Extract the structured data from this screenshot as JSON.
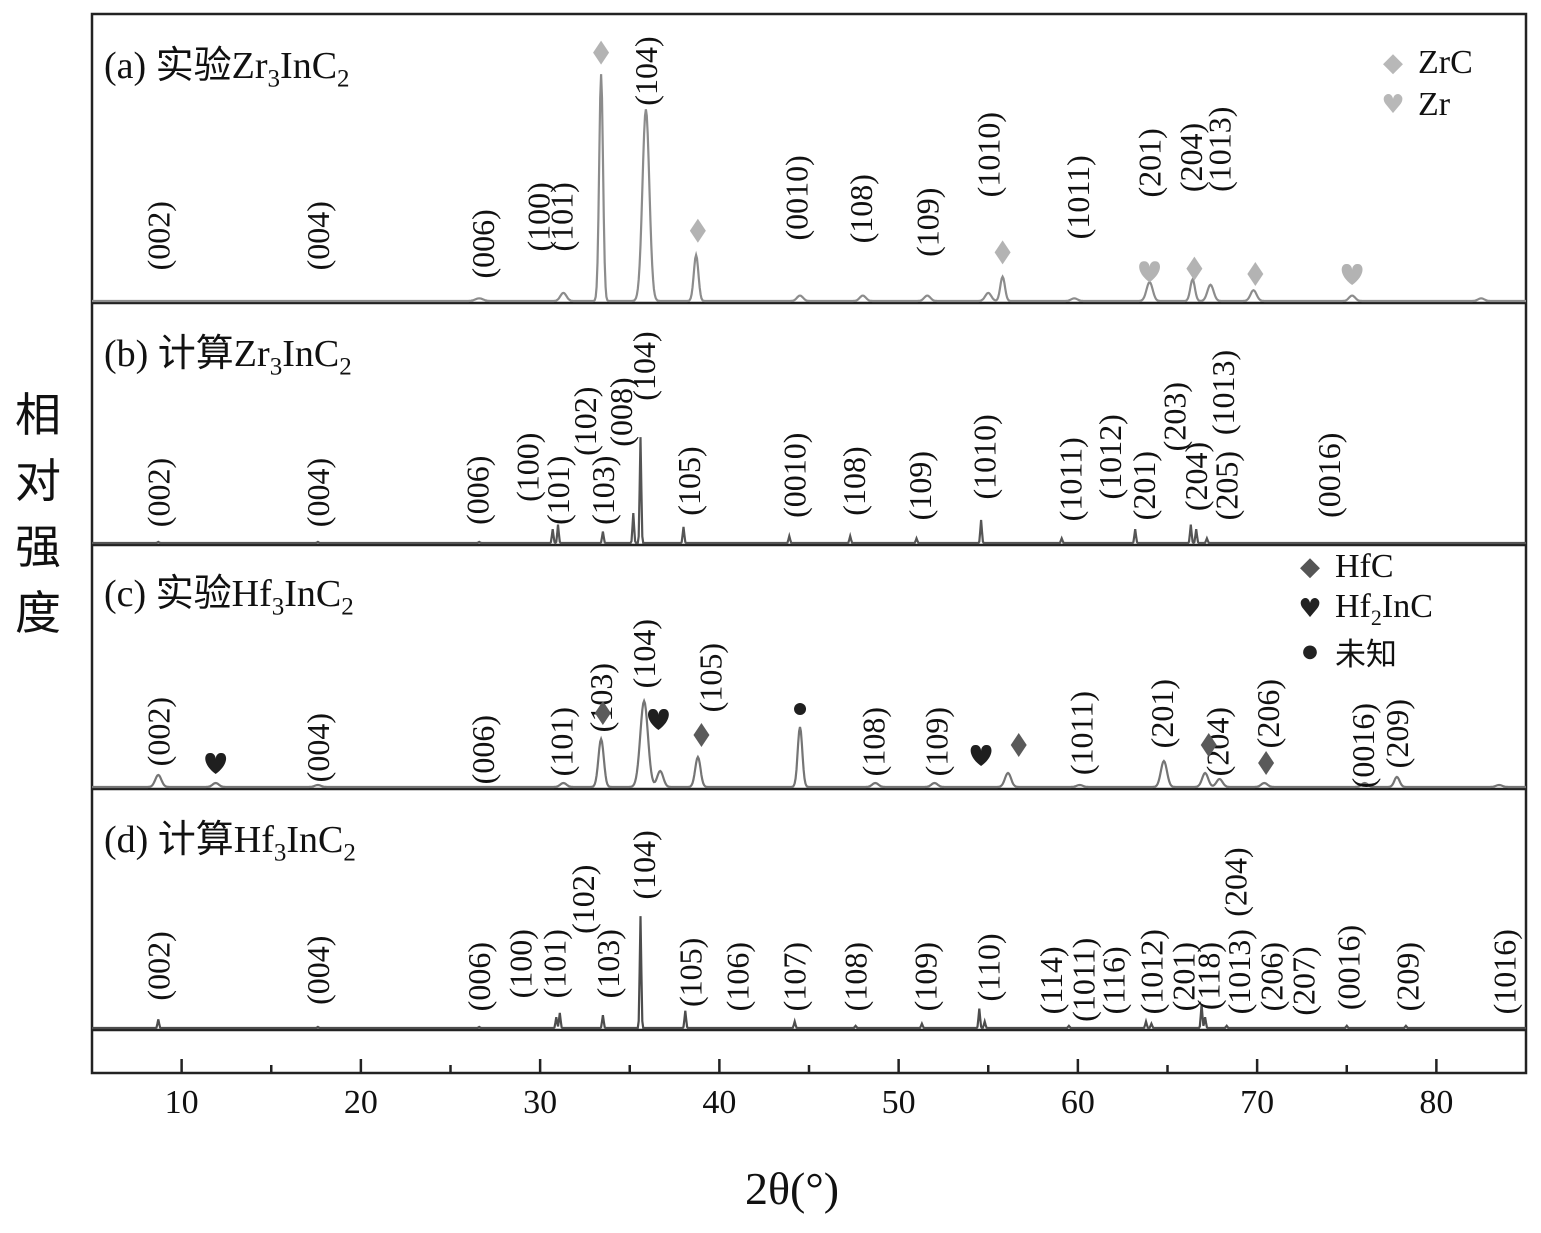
{
  "chart_data": {
    "type": "line",
    "xlabel": "2θ(°)",
    "ylabel": "相对强度",
    "xlim": [
      5,
      85
    ],
    "xticks": [
      10,
      20,
      30,
      40,
      50,
      60,
      70,
      80
    ],
    "grid": false,
    "panels": [
      {
        "id": "a",
        "title": "(a) 实验Zr3InC2",
        "title_parts": [
          "(a) 实验Zr",
          "3",
          "InC",
          "2"
        ],
        "color": "#8c8c8c",
        "peaks": [
          [
            26.6,
            0.01,
            0.5
          ],
          [
            31.3,
            0.03,
            0.4
          ],
          [
            33.4,
            0.84,
            0.25
          ],
          [
            35.9,
            0.71,
            0.45
          ],
          [
            38.7,
            0.17,
            0.3
          ],
          [
            44.5,
            0.02,
            0.4
          ],
          [
            48.0,
            0.02,
            0.4
          ],
          [
            51.6,
            0.02,
            0.4
          ],
          [
            55.0,
            0.03,
            0.4
          ],
          [
            55.8,
            0.09,
            0.3
          ],
          [
            59.8,
            0.01,
            0.4
          ],
          [
            64.0,
            0.07,
            0.4
          ],
          [
            66.4,
            0.08,
            0.3
          ],
          [
            67.4,
            0.06,
            0.4
          ],
          [
            69.8,
            0.04,
            0.4
          ],
          [
            75.3,
            0.02,
            0.4
          ],
          [
            82.5,
            0.01,
            0.4
          ]
        ],
        "labels": [
          {
            "text": "(002)",
            "x": 8.7,
            "top": 0.37
          },
          {
            "text": "(004)",
            "x": 17.6,
            "top": 0.37
          },
          {
            "text": "(006)",
            "x": 26.8,
            "top": 0.34
          },
          {
            "text": "(100)",
            "x": 29.9,
            "top": 0.44
          },
          {
            "text": "(101)",
            "x": 31.2,
            "top": 0.44
          },
          {
            "text": "(104)",
            "x": 35.9,
            "top": 0.98
          },
          {
            "text": "(0010)",
            "x": 44.3,
            "top": 0.54
          },
          {
            "text": "(108)",
            "x": 47.9,
            "top": 0.47
          },
          {
            "text": "(109)",
            "x": 51.6,
            "top": 0.42
          },
          {
            "text": "(1010)",
            "x": 55.0,
            "top": 0.7
          },
          {
            "text": "(1011)",
            "x": 60.0,
            "top": 0.54
          },
          {
            "text": "(201)",
            "x": 64.0,
            "top": 0.64
          },
          {
            "text": "(204)",
            "x": 66.3,
            "top": 0.66
          },
          {
            "text": "(1013)",
            "x": 67.9,
            "top": 0.72
          }
        ],
        "markers": [
          {
            "sym": "diamond",
            "x": 33.4,
            "y": 0.92
          },
          {
            "sym": "diamond",
            "x": 38.8,
            "y": 0.26
          },
          {
            "sym": "diamond",
            "x": 55.8,
            "y": 0.18
          },
          {
            "sym": "heart",
            "x": 64.0,
            "y": 0.11
          },
          {
            "sym": "diamond",
            "x": 66.5,
            "y": 0.12
          },
          {
            "sym": "diamond",
            "x": 69.9,
            "y": 0.1
          },
          {
            "sym": "heart",
            "x": 75.3,
            "y": 0.1
          }
        ],
        "legend": [
          {
            "sym": "diamond",
            "label": "ZrC"
          },
          {
            "sym": "heart",
            "label": "Zr"
          }
        ]
      },
      {
        "id": "b",
        "title": "(b) 计算Zr3InC2",
        "title_parts": [
          "(b) 计算Zr",
          "3",
          "InC",
          "2"
        ],
        "color": "#555555",
        "peaks": [
          [
            8.7,
            0.005,
            0.1
          ],
          [
            17.6,
            0.005,
            0.1
          ],
          [
            26.6,
            0.005,
            0.1
          ],
          [
            30.7,
            0.06,
            0.1
          ],
          [
            31.0,
            0.08,
            0.1
          ],
          [
            33.5,
            0.05,
            0.1
          ],
          [
            35.2,
            0.13,
            0.1
          ],
          [
            35.6,
            0.46,
            0.1
          ],
          [
            38.0,
            0.07,
            0.1
          ],
          [
            43.9,
            0.03,
            0.1
          ],
          [
            47.3,
            0.03,
            0.1
          ],
          [
            51.0,
            0.02,
            0.1
          ],
          [
            54.6,
            0.1,
            0.1
          ],
          [
            59.1,
            0.02,
            0.1
          ],
          [
            63.2,
            0.06,
            0.1
          ],
          [
            66.3,
            0.08,
            0.1
          ],
          [
            66.6,
            0.06,
            0.1
          ],
          [
            67.2,
            0.02,
            0.1
          ]
        ],
        "labels": [
          {
            "text": "(002)",
            "x": 8.7,
            "top": 0.37
          },
          {
            "text": "(004)",
            "x": 17.6,
            "top": 0.37
          },
          {
            "text": "(006)",
            "x": 26.5,
            "top": 0.38
          },
          {
            "text": "(100)",
            "x": 29.3,
            "top": 0.48
          },
          {
            "text": "(101)",
            "x": 31.0,
            "top": 0.38
          },
          {
            "text": "(102)",
            "x": 32.5,
            "top": 0.68
          },
          {
            "text": "(103)",
            "x": 33.5,
            "top": 0.38
          },
          {
            "text": "(008)",
            "x": 34.5,
            "top": 0.72
          },
          {
            "text": "(104)",
            "x": 35.8,
            "top": 0.92
          },
          {
            "text": "(105)",
            "x": 38.3,
            "top": 0.42
          },
          {
            "text": "(0010)",
            "x": 44.2,
            "top": 0.48
          },
          {
            "text": "(108)",
            "x": 47.5,
            "top": 0.42
          },
          {
            "text": "(109)",
            "x": 51.2,
            "top": 0.4
          },
          {
            "text": "(1010)",
            "x": 54.8,
            "top": 0.56
          },
          {
            "text": "(1011)",
            "x": 59.6,
            "top": 0.46
          },
          {
            "text": "(1012)",
            "x": 61.8,
            "top": 0.56
          },
          {
            "text": "(201)",
            "x": 63.7,
            "top": 0.4
          },
          {
            "text": "(203)",
            "x": 65.4,
            "top": 0.7
          },
          {
            "text": "(204)",
            "x": 66.6,
            "top": 0.44
          },
          {
            "text": "(1013)",
            "x": 68.1,
            "top": 0.84
          },
          {
            "text": "(205)",
            "x": 68.3,
            "top": 0.4
          },
          {
            "text": "(0016)",
            "x": 74.0,
            "top": 0.48
          }
        ],
        "markers": [],
        "legend": []
      },
      {
        "id": "c",
        "title": "(c) 实验Hf3InC2",
        "title_parts": [
          "(c) 实验Hf",
          "3",
          "InC",
          "2"
        ],
        "color": "#757575",
        "peaks": [
          [
            8.7,
            0.06,
            0.4
          ],
          [
            11.9,
            0.02,
            0.4
          ],
          [
            17.6,
            0.01,
            0.4
          ],
          [
            31.3,
            0.02,
            0.4
          ],
          [
            33.4,
            0.24,
            0.35
          ],
          [
            35.8,
            0.43,
            0.5
          ],
          [
            36.7,
            0.08,
            0.4
          ],
          [
            38.8,
            0.15,
            0.35
          ],
          [
            44.5,
            0.3,
            0.3
          ],
          [
            48.7,
            0.02,
            0.4
          ],
          [
            52.0,
            0.02,
            0.4
          ],
          [
            56.1,
            0.07,
            0.4
          ],
          [
            60.1,
            0.01,
            0.4
          ],
          [
            64.8,
            0.13,
            0.4
          ],
          [
            67.1,
            0.07,
            0.4
          ],
          [
            67.9,
            0.04,
            0.4
          ],
          [
            70.4,
            0.02,
            0.4
          ],
          [
            76.0,
            0.02,
            0.4
          ],
          [
            77.8,
            0.05,
            0.35
          ],
          [
            83.5,
            0.01,
            0.4
          ]
        ],
        "labels": [
          {
            "text": "(002)",
            "x": 8.7,
            "top": 0.45
          },
          {
            "text": "(004)",
            "x": 17.6,
            "top": 0.37
          },
          {
            "text": "(006)",
            "x": 26.8,
            "top": 0.36
          },
          {
            "text": "(101)",
            "x": 31.2,
            "top": 0.4
          },
          {
            "text": "(103)",
            "x": 33.4,
            "top": 0.62
          },
          {
            "text": "(104)",
            "x": 35.8,
            "top": 0.84
          },
          {
            "text": "(105)",
            "x": 39.5,
            "top": 0.72
          },
          {
            "text": "(108)",
            "x": 48.6,
            "top": 0.4
          },
          {
            "text": "(109)",
            "x": 52.1,
            "top": 0.4
          },
          {
            "text": "(1011)",
            "x": 60.2,
            "top": 0.48
          },
          {
            "text": "(201)",
            "x": 64.7,
            "top": 0.54
          },
          {
            "text": "(204)",
            "x": 67.8,
            "top": 0.4
          },
          {
            "text": "(206)",
            "x": 70.6,
            "top": 0.54
          },
          {
            "text": "(0016)",
            "x": 75.9,
            "top": 0.42
          },
          {
            "text": "(209)",
            "x": 77.8,
            "top": 0.44
          }
        ],
        "markers": [
          {
            "sym": "heart",
            "x": 11.9,
            "y": 0.12
          },
          {
            "sym": "diamond",
            "x": 33.5,
            "y": 0.37
          },
          {
            "sym": "heart",
            "x": 36.6,
            "y": 0.34
          },
          {
            "sym": "diamond",
            "x": 39.0,
            "y": 0.26
          },
          {
            "sym": "dot",
            "x": 44.5,
            "y": 0.39
          },
          {
            "sym": "heart",
            "x": 54.6,
            "y": 0.16
          },
          {
            "sym": "diamond",
            "x": 56.7,
            "y": 0.21
          },
          {
            "sym": "diamond",
            "x": 67.3,
            "y": 0.21
          },
          {
            "sym": "diamond",
            "x": 70.5,
            "y": 0.12
          }
        ],
        "legend": [
          {
            "sym": "diamond",
            "label": "HfC"
          },
          {
            "sym": "heart",
            "label": "Hf2InC",
            "label_parts": [
              "Hf",
              "2",
              "InC"
            ]
          },
          {
            "sym": "dot",
            "label": "未知"
          }
        ]
      },
      {
        "id": "d",
        "title": "(d) 计算Hf3InC2",
        "title_parts": [
          "(d) 计算Hf",
          "3",
          "InC",
          "2"
        ],
        "color": "#4d4d4d",
        "peaks": [
          [
            8.7,
            0.04,
            0.1
          ],
          [
            17.6,
            0.005,
            0.1
          ],
          [
            26.6,
            0.005,
            0.1
          ],
          [
            30.9,
            0.05,
            0.1
          ],
          [
            31.1,
            0.07,
            0.1
          ],
          [
            33.5,
            0.06,
            0.1
          ],
          [
            35.6,
            0.52,
            0.1
          ],
          [
            38.1,
            0.08,
            0.1
          ],
          [
            44.2,
            0.03,
            0.1
          ],
          [
            47.6,
            0.01,
            0.1
          ],
          [
            51.3,
            0.02,
            0.1
          ],
          [
            54.5,
            0.09,
            0.1
          ],
          [
            54.8,
            0.03,
            0.1
          ],
          [
            59.5,
            0.01,
            0.1
          ],
          [
            63.8,
            0.03,
            0.1
          ],
          [
            64.1,
            0.02,
            0.1
          ],
          [
            66.9,
            0.11,
            0.1
          ],
          [
            67.1,
            0.05,
            0.1
          ],
          [
            68.3,
            0.01,
            0.1
          ],
          [
            75.0,
            0.01,
            0.1
          ],
          [
            78.3,
            0.01,
            0.1
          ]
        ],
        "labels": [
          {
            "text": "(002)",
            "x": 8.7,
            "top": 0.45
          },
          {
            "text": "(004)",
            "x": 17.6,
            "top": 0.43
          },
          {
            "text": "(006)",
            "x": 26.6,
            "top": 0.4
          },
          {
            "text": "(100)",
            "x": 28.9,
            "top": 0.46
          },
          {
            "text": "(101)",
            "x": 30.8,
            "top": 0.46
          },
          {
            "text": "(102)",
            "x": 32.4,
            "top": 0.76
          },
          {
            "text": "(103)",
            "x": 33.8,
            "top": 0.46
          },
          {
            "text": "(104)",
            "x": 35.8,
            "top": 0.92
          },
          {
            "text": "(105)",
            "x": 38.4,
            "top": 0.42
          },
          {
            "text": "(106)",
            "x": 41.0,
            "top": 0.4
          },
          {
            "text": "(107)",
            "x": 44.2,
            "top": 0.4
          },
          {
            "text": "(108)",
            "x": 47.6,
            "top": 0.4
          },
          {
            "text": "(109)",
            "x": 51.5,
            "top": 0.4
          },
          {
            "text": "(110)",
            "x": 55.0,
            "top": 0.44
          },
          {
            "text": "(114)",
            "x": 58.5,
            "top": 0.38
          },
          {
            "text": "(1011)",
            "x": 60.3,
            "top": 0.42
          },
          {
            "text": "(116)",
            "x": 62.0,
            "top": 0.38
          },
          {
            "text": "(1012)",
            "x": 64.1,
            "top": 0.46
          },
          {
            "text": "(201)",
            "x": 65.9,
            "top": 0.4
          },
          {
            "text": "(118)",
            "x": 67.3,
            "top": 0.4
          },
          {
            "text": "(204)",
            "x": 68.8,
            "top": 0.84
          },
          {
            "text": "(1013)",
            "x": 69.0,
            "top": 0.46
          },
          {
            "text": "(206)",
            "x": 70.8,
            "top": 0.4
          },
          {
            "text": "(207)",
            "x": 72.6,
            "top": 0.38
          },
          {
            "text": "(0016)",
            "x": 75.1,
            "top": 0.48
          },
          {
            "text": "(209)",
            "x": 78.4,
            "top": 0.4
          },
          {
            "text": "(1016)",
            "x": 83.8,
            "top": 0.46
          }
        ],
        "markers": [],
        "legend": []
      }
    ]
  }
}
